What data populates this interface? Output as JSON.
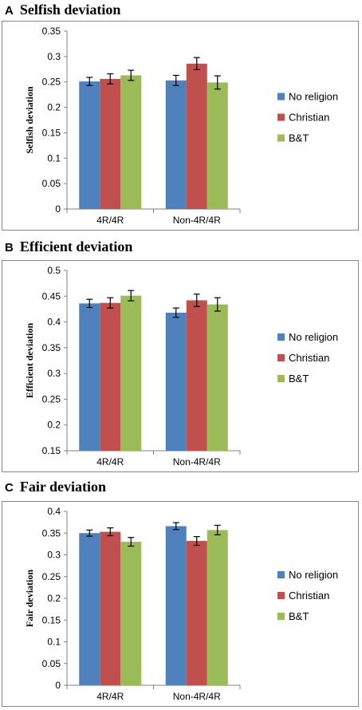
{
  "figure": {
    "panels": [
      {
        "letter": "A",
        "title": "Selfish deviation"
      },
      {
        "letter": "B",
        "title": "Efficient deviation"
      },
      {
        "letter": "C",
        "title": "Fair deviation"
      }
    ]
  },
  "chart_data": [
    {
      "type": "bar",
      "title": "Selfish deviation",
      "ylabel": "Selfish deviation",
      "xlabel": "",
      "categories": [
        "4R/4R",
        "Non-4R/4R"
      ],
      "series": [
        {
          "name": "No religion",
          "values": [
            0.251,
            0.253
          ],
          "errors": [
            0.008,
            0.01
          ]
        },
        {
          "name": "Christian",
          "values": [
            0.256,
            0.286
          ],
          "errors": [
            0.01,
            0.012
          ]
        },
        {
          "name": "B&T",
          "values": [
            0.263,
            0.249
          ],
          "errors": [
            0.01,
            0.013
          ]
        }
      ],
      "ylim": [
        0,
        0.35
      ],
      "yticks": [
        "0",
        "0.05",
        "0.1",
        "0.15",
        "0.2",
        "0.25",
        "0.3",
        "0.35"
      ],
      "ytick_values": [
        0,
        0.05,
        0.1,
        0.15,
        0.2,
        0.25,
        0.3,
        0.35
      ],
      "legend_position": "right",
      "colors": [
        "#4f81bd",
        "#c0504d",
        "#9bbb59"
      ],
      "grid": false
    },
    {
      "type": "bar",
      "title": "Efficient deviation",
      "ylabel": "Efficient  deviation",
      "xlabel": "",
      "categories": [
        "4R/4R",
        "Non-4R/4R"
      ],
      "series": [
        {
          "name": "No religion",
          "values": [
            0.436,
            0.418
          ],
          "errors": [
            0.008,
            0.009
          ]
        },
        {
          "name": "Christian",
          "values": [
            0.437,
            0.442
          ],
          "errors": [
            0.01,
            0.012
          ]
        },
        {
          "name": "B&T",
          "values": [
            0.451,
            0.434
          ],
          "errors": [
            0.01,
            0.013
          ]
        }
      ],
      "ylim": [
        0.15,
        0.5
      ],
      "yticks": [
        "0.15",
        "0.2",
        "0.25",
        "0.3",
        "0.35",
        "0.4",
        "0.45",
        "0.5"
      ],
      "ytick_values": [
        0.15,
        0.2,
        0.25,
        0.3,
        0.35,
        0.4,
        0.45,
        0.5
      ],
      "legend_position": "right",
      "colors": [
        "#4f81bd",
        "#c0504d",
        "#9bbb59"
      ],
      "grid": false
    },
    {
      "type": "bar",
      "title": "Fair deviation",
      "ylabel": "Fair  deviation",
      "xlabel": "",
      "categories": [
        "4R/4R",
        "Non-4R/4R"
      ],
      "series": [
        {
          "name": "No religion",
          "values": [
            0.35,
            0.366
          ],
          "errors": [
            0.007,
            0.008
          ]
        },
        {
          "name": "Christian",
          "values": [
            0.353,
            0.332
          ],
          "errors": [
            0.009,
            0.01
          ]
        },
        {
          "name": "B&T",
          "values": [
            0.33,
            0.357
          ],
          "errors": [
            0.01,
            0.011
          ]
        }
      ],
      "ylim": [
        0,
        0.4
      ],
      "yticks": [
        "0",
        "0.05",
        "0.1",
        "0.15",
        "0.2",
        "0.25",
        "0.3",
        "0.35",
        "0.4"
      ],
      "ytick_values": [
        0,
        0.05,
        0.1,
        0.15,
        0.2,
        0.25,
        0.3,
        0.35,
        0.4
      ],
      "legend_position": "right",
      "colors": [
        "#4f81bd",
        "#c0504d",
        "#9bbb59"
      ],
      "grid": false
    }
  ]
}
